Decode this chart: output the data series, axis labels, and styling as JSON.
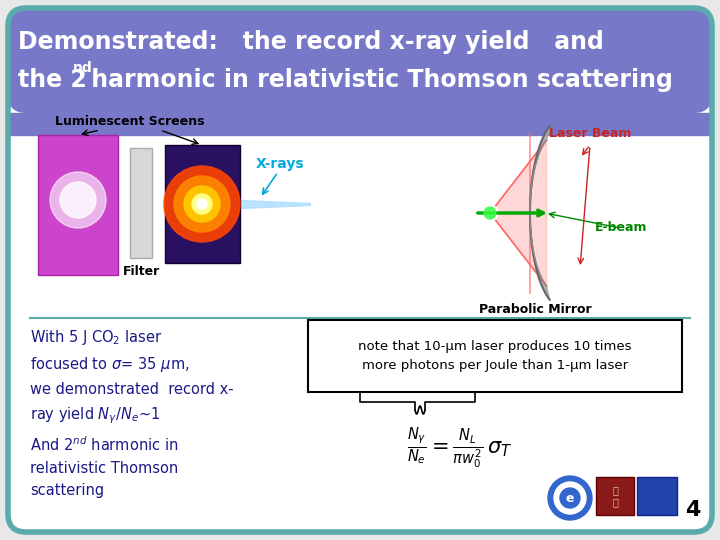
{
  "title_line1": "Demonstrated:   the record x-ray yield   and",
  "title_line2_pre": "the 2",
  "title_line2_super": "nd",
  "title_line2_post": " harmonic in relativistic Thomson scattering",
  "header_bg_color": "#7878c8",
  "body_bg_color": "#ffffff",
  "border_color": "#5aabab",
  "title_text_color": "#ffffff",
  "body_text_color": "#1a1a88",
  "note_text": "note that 10-μm laser produces 10 times\nmore photons per Joule than 1-μm laser",
  "page_number": "4",
  "diagram": {
    "luminescent_label": "Luminescent Screens",
    "filter_label": "Filter",
    "xrays_label": "X-rays",
    "laser_label": "Laser Beam",
    "ebeam_label": "E-beam",
    "mirror_label": "Parabolic Mirror"
  }
}
